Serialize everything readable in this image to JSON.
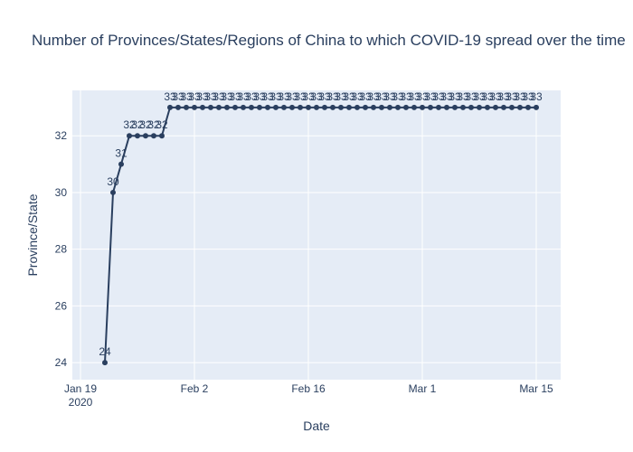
{
  "chart_data": {
    "type": "line",
    "title": "Number of Provinces/States/Regions of China to which COVID-19 spread over the time",
    "xlabel": "Date",
    "ylabel": "Province/State",
    "x_ticks": [
      {
        "date": "2020-01-19",
        "label": "Jan 19",
        "sublabel": "2020"
      },
      {
        "date": "2020-02-02",
        "label": "Feb 2",
        "sublabel": ""
      },
      {
        "date": "2020-02-16",
        "label": "Feb 16",
        "sublabel": ""
      },
      {
        "date": "2020-03-01",
        "label": "Mar 1",
        "sublabel": ""
      },
      {
        "date": "2020-03-15",
        "label": "Mar 15",
        "sublabel": ""
      }
    ],
    "y_ticks": [
      24,
      26,
      28,
      30,
      32
    ],
    "xlim": [
      "2020-01-18",
      "2020-03-18"
    ],
    "ylim": [
      23.4,
      33.6
    ],
    "grid": true,
    "colors": {
      "line": "#2a3f5f",
      "marker": "#2a3f5f",
      "plot_bg": "#e5ecf6",
      "grid": "#ffffff",
      "text": "#2a3f5f"
    },
    "series": [
      {
        "x": [
          "2020-01-22",
          "2020-01-23",
          "2020-01-24",
          "2020-01-25",
          "2020-01-26",
          "2020-01-27",
          "2020-01-28",
          "2020-01-29",
          "2020-01-30",
          "2020-01-31",
          "2020-02-01",
          "2020-02-02",
          "2020-02-03",
          "2020-02-04",
          "2020-02-05",
          "2020-02-06",
          "2020-02-07",
          "2020-02-08",
          "2020-02-09",
          "2020-02-10",
          "2020-02-11",
          "2020-02-12",
          "2020-02-13",
          "2020-02-14",
          "2020-02-15",
          "2020-02-16",
          "2020-02-17",
          "2020-02-18",
          "2020-02-19",
          "2020-02-20",
          "2020-02-21",
          "2020-02-22",
          "2020-02-23",
          "2020-02-24",
          "2020-02-25",
          "2020-02-26",
          "2020-02-27",
          "2020-02-28",
          "2020-02-29",
          "2020-03-01",
          "2020-03-02",
          "2020-03-03",
          "2020-03-04",
          "2020-03-05",
          "2020-03-06",
          "2020-03-07",
          "2020-03-08",
          "2020-03-09",
          "2020-03-10",
          "2020-03-11",
          "2020-03-12",
          "2020-03-13",
          "2020-03-14",
          "2020-03-15"
        ],
        "y": [
          24,
          30,
          31,
          32,
          32,
          32,
          32,
          32,
          33,
          33,
          33,
          33,
          33,
          33,
          33,
          33,
          33,
          33,
          33,
          33,
          33,
          33,
          33,
          33,
          33,
          33,
          33,
          33,
          33,
          33,
          33,
          33,
          33,
          33,
          33,
          33,
          33,
          33,
          33,
          33,
          33,
          33,
          33,
          33,
          33,
          33,
          33,
          33,
          33,
          33,
          33,
          33,
          33,
          33
        ],
        "labels": [
          "24",
          "30",
          "31",
          "32",
          "32",
          "32",
          "32",
          "32",
          "33",
          "33",
          "33",
          "33",
          "33",
          "33",
          "33",
          "33",
          "33",
          "33",
          "33",
          "33",
          "33",
          "33",
          "33",
          "33",
          "33",
          "33",
          "33",
          "33",
          "33",
          "33",
          "33",
          "33",
          "33",
          "33",
          "33",
          "33",
          "33",
          "33",
          "33",
          "33",
          "33",
          "33",
          "33",
          "33",
          "33",
          "33",
          "33",
          "33",
          "33",
          "33",
          "33",
          "33",
          "33",
          "33"
        ]
      }
    ]
  }
}
